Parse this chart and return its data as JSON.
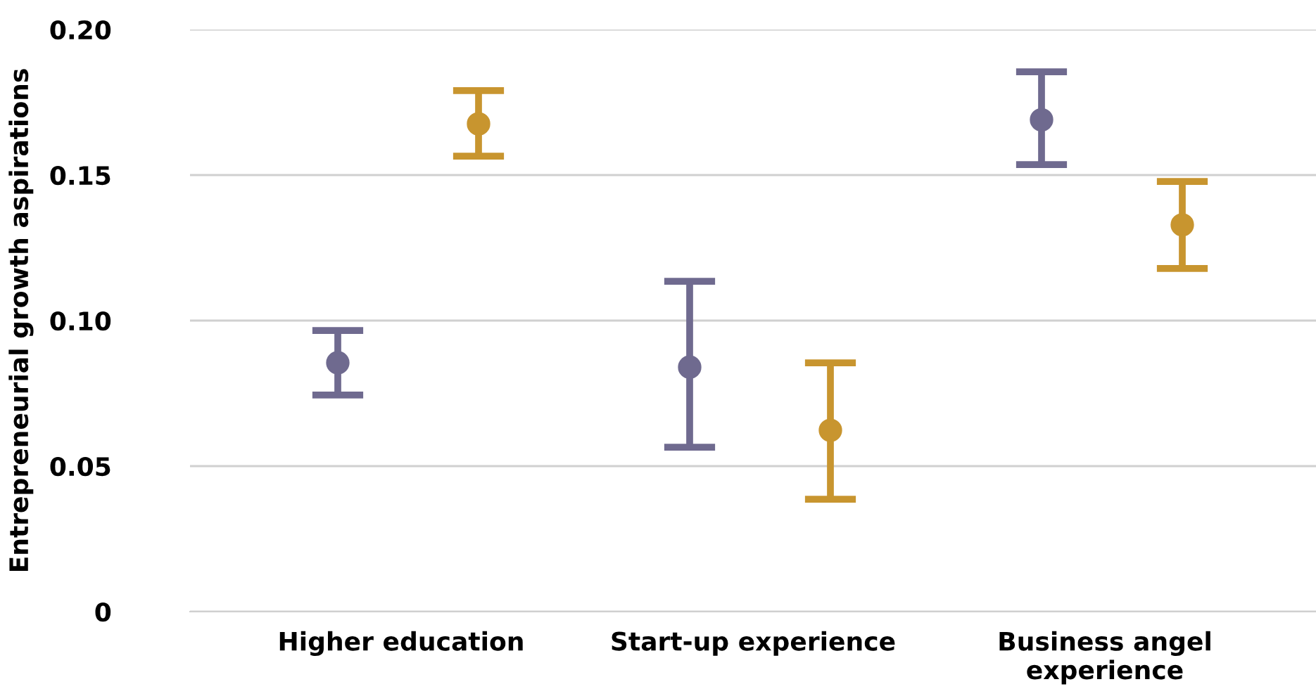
{
  "chart_data": {
    "type": "scatter",
    "ylabel": "Entrepreneurial growth aspirations",
    "categories": [
      "Higher education",
      "Start-up experience",
      "Business angel\nexperience"
    ],
    "series": [
      {
        "color": "#6f6a8f",
        "values": [
          0.0855,
          0.084,
          0.169
        ],
        "errors": [
          [
            0.0744,
            0.0966
          ],
          [
            0.0565,
            0.1135
          ],
          [
            0.1536,
            0.1855
          ]
        ]
      },
      {
        "color": "#c8952f",
        "values": [
          0.1676,
          0.0623,
          0.1329
        ],
        "errors": [
          [
            0.1565,
            0.179
          ],
          [
            0.0386,
            0.0855
          ],
          [
            0.1179,
            0.1478
          ]
        ]
      }
    ],
    "ylim": [
      0,
      0.2
    ],
    "yticks": [
      {
        "value": 0,
        "label": "0"
      },
      {
        "value": 0.05,
        "label": "0.05"
      },
      {
        "value": 0.1,
        "label": "0.10"
      },
      {
        "value": 0.15,
        "label": "0.15"
      },
      {
        "value": 0.2,
        "label": "0.20"
      }
    ],
    "grid": "y",
    "marker": "circle"
  }
}
